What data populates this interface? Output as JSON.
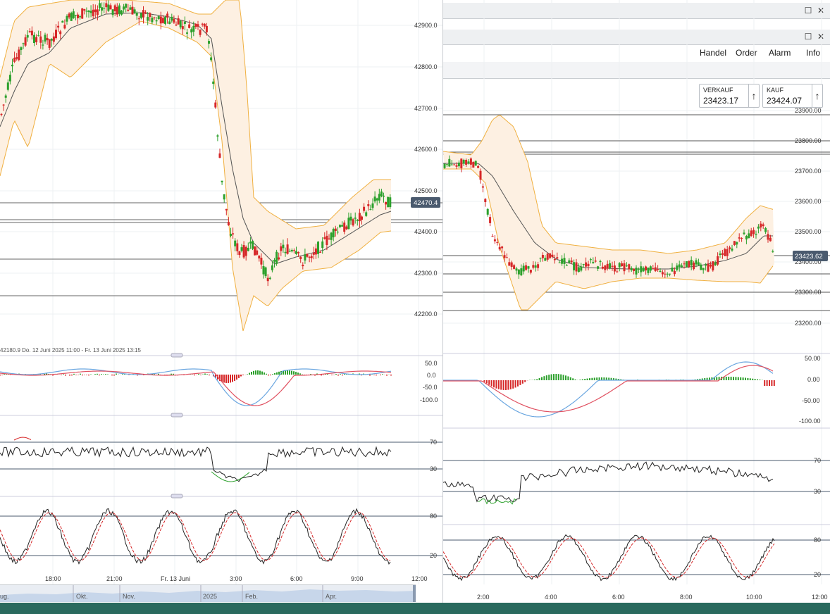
{
  "left_chart": {
    "price_axis": [
      "42900.0",
      "42800.0",
      "42700.0",
      "42600.0",
      "42500.0",
      "42400.0",
      "42300.0",
      "42200.0"
    ],
    "current_price": "42470.4",
    "info_bar": "42180.9   Do. 12 Juni 2025 11:00 - Fr. 13 Juni 2025 13:15",
    "macd_axis": [
      "50.0",
      "0.0",
      "-50.0",
      "-100.0"
    ],
    "rsi_axis": [
      "70",
      "30"
    ],
    "stoch_axis": [
      "80",
      "20"
    ],
    "time_axis": [
      "18:00",
      "21:00",
      "Fr. 13 Juni",
      "3:00",
      "6:00",
      "9:00",
      "12:00"
    ],
    "navigator_labels": [
      "ug.",
      "Okt.",
      "Nov.",
      "2025",
      "Feb.",
      "Apr."
    ]
  },
  "right_chart": {
    "close_glyph": "✕",
    "maximize_glyph": "☐",
    "menu": [
      "Handel",
      "Order",
      "Alarm",
      "Info"
    ],
    "sell_label": "VERKAUF",
    "sell_price": "23423.17",
    "buy_label": "KAUF",
    "buy_price": "23424.07",
    "arrow_glyph": "↑",
    "price_axis": [
      "23900.00",
      "23800.00",
      "23700.00",
      "23600.00",
      "23500.00",
      "23400.00",
      "23300.00",
      "23200.00"
    ],
    "current_price": "23423.62",
    "macd_axis": [
      "50.00",
      "0.00",
      "-50.00",
      "-100.00"
    ],
    "rsi_axis": [
      "70",
      "30"
    ],
    "stoch_axis": [
      "80",
      "20"
    ],
    "time_axis": [
      "2:00",
      "4:00",
      "6:00",
      "8:00",
      "10:00",
      "12:00"
    ]
  },
  "colors": {
    "up": "#2ca02c",
    "down": "#d62728",
    "band": "#f0b040",
    "price_tag": "#4a5a6e"
  }
}
